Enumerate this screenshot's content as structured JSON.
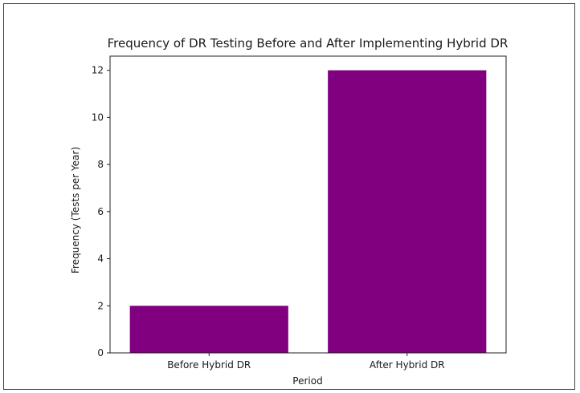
{
  "chart_data": {
    "type": "bar",
    "title": "Frequency of DR Testing Before and After Implementing Hybrid DR",
    "xlabel": "Period",
    "ylabel": "Frequency (Tests per Year)",
    "categories": [
      "Before Hybrid DR",
      "After Hybrid DR"
    ],
    "values": [
      2,
      12
    ],
    "ylim": [
      0,
      12.6
    ],
    "yticks": [
      0,
      2,
      4,
      6,
      8,
      10,
      12
    ],
    "grid": false,
    "bar_color": "#800080"
  }
}
